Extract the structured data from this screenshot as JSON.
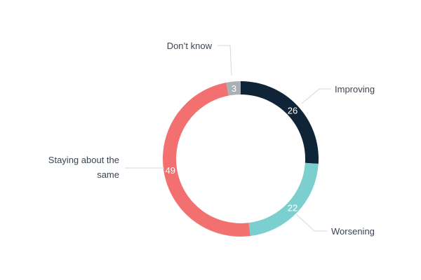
{
  "chart_data": {
    "type": "pie",
    "variant": "donut",
    "categories": [
      "Improving",
      "Worsening",
      "Staying about the same",
      "Don’t know"
    ],
    "values": [
      26,
      22,
      49,
      3
    ],
    "colors": [
      "#0f2537",
      "#7ccfcf",
      "#f27070",
      "#a9b0b6"
    ],
    "title": "",
    "legend": "none"
  }
}
